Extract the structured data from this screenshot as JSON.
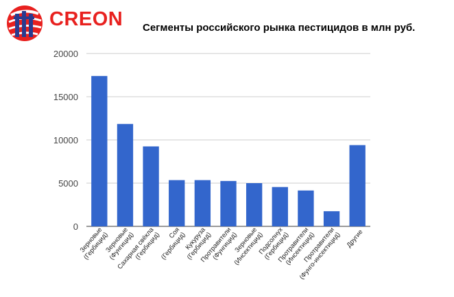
{
  "brand": {
    "name": "CREON",
    "color": "#e8211f"
  },
  "chart_data": {
    "type": "bar",
    "title": "Сегменты российского рынка пестицидов в млн руб.",
    "xlabel": "",
    "ylabel": "",
    "ylim": [
      0,
      20000
    ],
    "yticks": [
      0,
      5000,
      10000,
      15000,
      20000
    ],
    "grid": true,
    "legend": "none",
    "bar_color": "#3366cc",
    "categories": [
      [
        "Зерновые",
        "(Гербицид)"
      ],
      [
        "Зерновые",
        "(Фунгицид)"
      ],
      [
        "Сахарная свёкла",
        "(Гербицид)"
      ],
      [
        "Соя",
        "(Гербицид)"
      ],
      [
        "Кукуруза",
        "(Гербицид)"
      ],
      [
        "Протравители",
        "(Фунгицид)"
      ],
      [
        "Зерновые",
        "(Инсектицид)"
      ],
      [
        "Подсолнух",
        "(Гербицид)"
      ],
      [
        "Протравители",
        "(Инсектицид)"
      ],
      [
        "Протравители",
        "(Фунго-инсектицид)"
      ],
      [
        "Другие"
      ]
    ],
    "values": [
      17400,
      11850,
      9250,
      5350,
      5350,
      5250,
      5000,
      4550,
      4150,
      1750,
      9400
    ]
  }
}
